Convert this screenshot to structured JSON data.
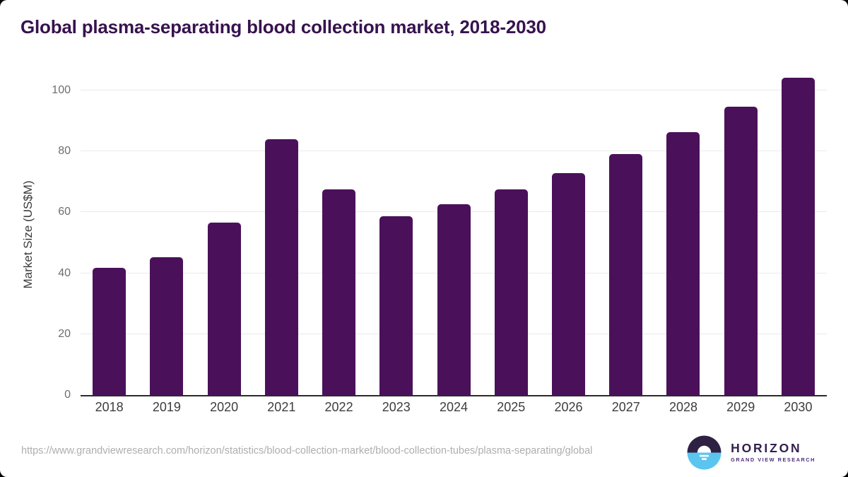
{
  "page": {
    "source_url": "https://www.grandviewresearch.com/horizon/statistics/blood-collection-market/blood-collection-tubes/plasma-separating/global"
  },
  "chart_data": {
    "type": "bar",
    "title": "Global plasma-separating blood collection market, 2018-2030",
    "categories": [
      "2018",
      "2019",
      "2020",
      "2021",
      "2022",
      "2023",
      "2024",
      "2025",
      "2026",
      "2027",
      "2028",
      "2029",
      "2030"
    ],
    "values": [
      41.7,
      45.2,
      56.7,
      83.9,
      67.4,
      58.6,
      62.6,
      67.5,
      72.9,
      79.1,
      86.3,
      94.6,
      104.2
    ],
    "xlabel": "",
    "ylabel": "Market Size (US$M)",
    "yticks": [
      0,
      20,
      40,
      60,
      80,
      100
    ],
    "ylim": [
      0,
      105.3
    ],
    "grid": true,
    "legend": false,
    "bar_color": "#4a115a",
    "gridline_color": "#e9e9e9",
    "axis_line_color": "#2b2b2b",
    "title_color": "#37124f"
  },
  "branding": {
    "logo_title": "HORIZON",
    "logo_subtitle": "GRAND VIEW RESEARCH",
    "logo_dark_color": "#2e2144",
    "logo_blue_color": "#5bc5f0",
    "logo_title_color": "#33204d",
    "logo_subtitle_color": "#4f2c7c"
  }
}
